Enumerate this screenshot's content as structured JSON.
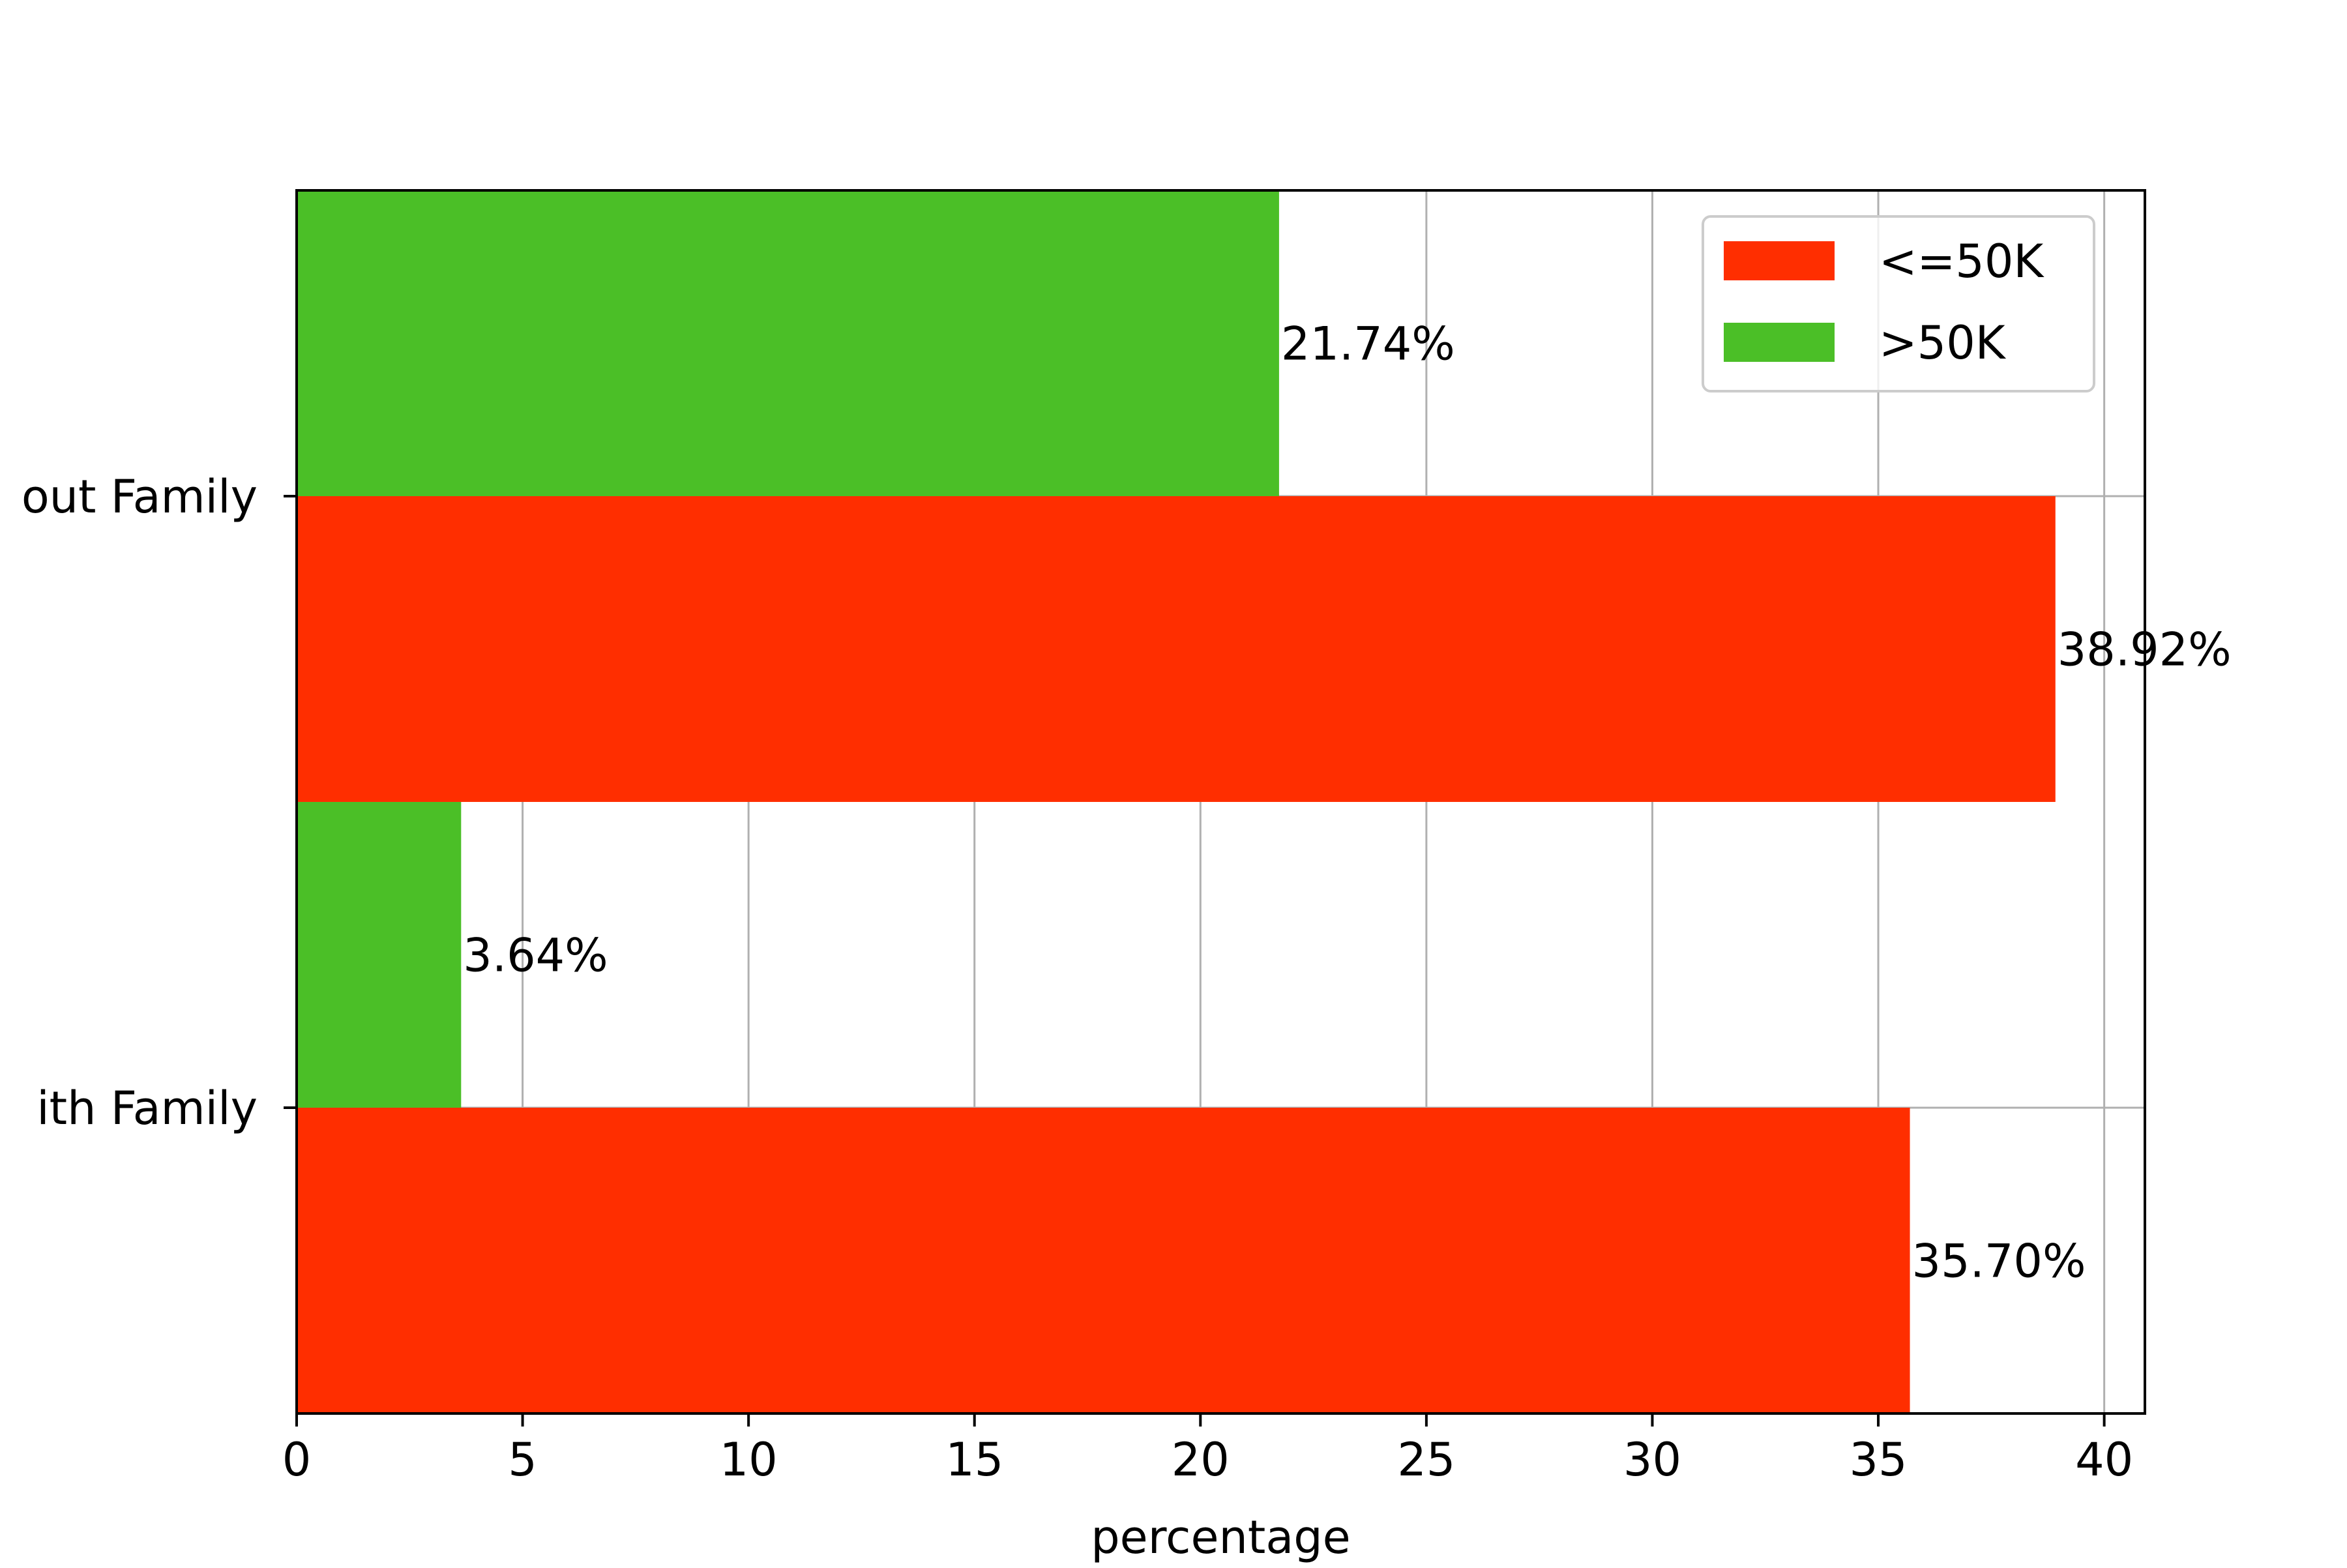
{
  "chart_data": {
    "type": "bar",
    "orientation": "horizontal",
    "title": "",
    "xlabel": "percentage",
    "ylabel": "",
    "categories": [
      "With Family",
      "Without Family"
    ],
    "category_tick_labels": [
      "ith Family",
      "out Family"
    ],
    "series": [
      {
        "name": "<=50K",
        "color": "#ff2e00",
        "values": [
          35.7,
          38.92
        ]
      },
      {
        "name": ">50K",
        "color": "#4bbf27",
        "values": [
          3.64,
          21.74
        ]
      }
    ],
    "data_labels": [
      [
        "35.70%",
        "38.92%"
      ],
      [
        "3.64%",
        "21.74%"
      ]
    ],
    "xlim": [
      0,
      40.9
    ],
    "xticks": [
      0,
      5,
      10,
      15,
      20,
      25,
      30,
      35,
      40
    ],
    "xtick_labels": [
      "0",
      "5",
      "10",
      "15",
      "20",
      "25",
      "30",
      "35",
      "40"
    ],
    "grid": true,
    "legend_position": "top-right",
    "legend_entries": [
      "<=50K",
      ">50K"
    ]
  }
}
